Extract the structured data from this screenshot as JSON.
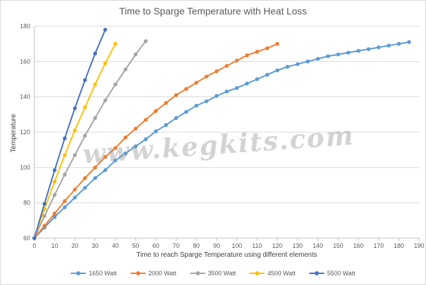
{
  "chart_data": {
    "type": "line",
    "title": "Time to Sparge Temperature with Heat Loss",
    "xlabel": "Time to reach Sparge Temperature  using different elements",
    "ylabel": "Temperature",
    "xlim": [
      0,
      190
    ],
    "ylim": [
      60,
      180
    ],
    "x_ticks": [
      "0",
      "10",
      "20",
      "30",
      "40",
      "50",
      "60",
      "70",
      "80",
      "90",
      "100",
      "110",
      "120",
      "130",
      "140",
      "150",
      "160",
      "170",
      "180",
      "190"
    ],
    "y_ticks": [
      "60",
      "80",
      "100",
      "120",
      "140",
      "160",
      "180"
    ],
    "grid": "horizontal",
    "legend_position": "bottom",
    "watermark": "www.kegkits.com",
    "series": [
      {
        "name": "1650 Watt",
        "color": "#5B9BD5",
        "x": [
          0,
          5,
          10,
          15,
          20,
          25,
          30,
          35,
          40,
          45,
          50,
          55,
          60,
          65,
          70,
          75,
          80,
          85,
          90,
          95,
          100,
          105,
          110,
          115,
          120,
          125,
          130,
          135,
          140,
          145,
          150,
          155,
          160,
          165,
          170,
          175,
          180,
          185
        ],
        "y": [
          60,
          66,
          72,
          77.5,
          83,
          88.5,
          94,
          98.5,
          104,
          108,
          112,
          116,
          120.5,
          124,
          128,
          131.5,
          135,
          137.5,
          140.5,
          143,
          145,
          147.5,
          150,
          152.5,
          155,
          157,
          158.5,
          160,
          161.5,
          163,
          164,
          165,
          166,
          167,
          168,
          169,
          170,
          171
        ]
      },
      {
        "name": "2000 Watt",
        "color": "#ED7D31",
        "x": [
          0,
          5,
          10,
          15,
          20,
          25,
          30,
          35,
          40,
          45,
          50,
          55,
          60,
          65,
          70,
          75,
          80,
          85,
          90,
          95,
          100,
          105,
          110,
          115,
          120
        ],
        "y": [
          60,
          67,
          74,
          81,
          87.5,
          94,
          100,
          106,
          111,
          117,
          122,
          127,
          132,
          136.5,
          141,
          144.5,
          148,
          151.5,
          154.5,
          157.5,
          160.5,
          163.5,
          165.5,
          167.5,
          170
        ]
      },
      {
        "name": "3500 Watt",
        "color": "#A5A5A5",
        "x": [
          0,
          5,
          10,
          15,
          20,
          25,
          30,
          35,
          40,
          45,
          50,
          55
        ],
        "y": [
          60,
          72.5,
          84.5,
          96,
          107,
          118,
          128,
          138,
          147,
          155.5,
          164,
          171.5
        ]
      },
      {
        "name": "4500 Watt",
        "color": "#FFC000",
        "x": [
          0,
          5,
          10,
          15,
          20,
          25,
          30,
          35,
          40
        ],
        "y": [
          60,
          76.5,
          92,
          107,
          121,
          134,
          147,
          159,
          170
        ]
      },
      {
        "name": "5500 Watt",
        "color": "#4472C4",
        "x": [
          0,
          5,
          10,
          15,
          20,
          25,
          30,
          35
        ],
        "y": [
          60,
          79.5,
          98.5,
          116.5,
          133.5,
          149.5,
          164.5,
          178
        ]
      }
    ]
  }
}
